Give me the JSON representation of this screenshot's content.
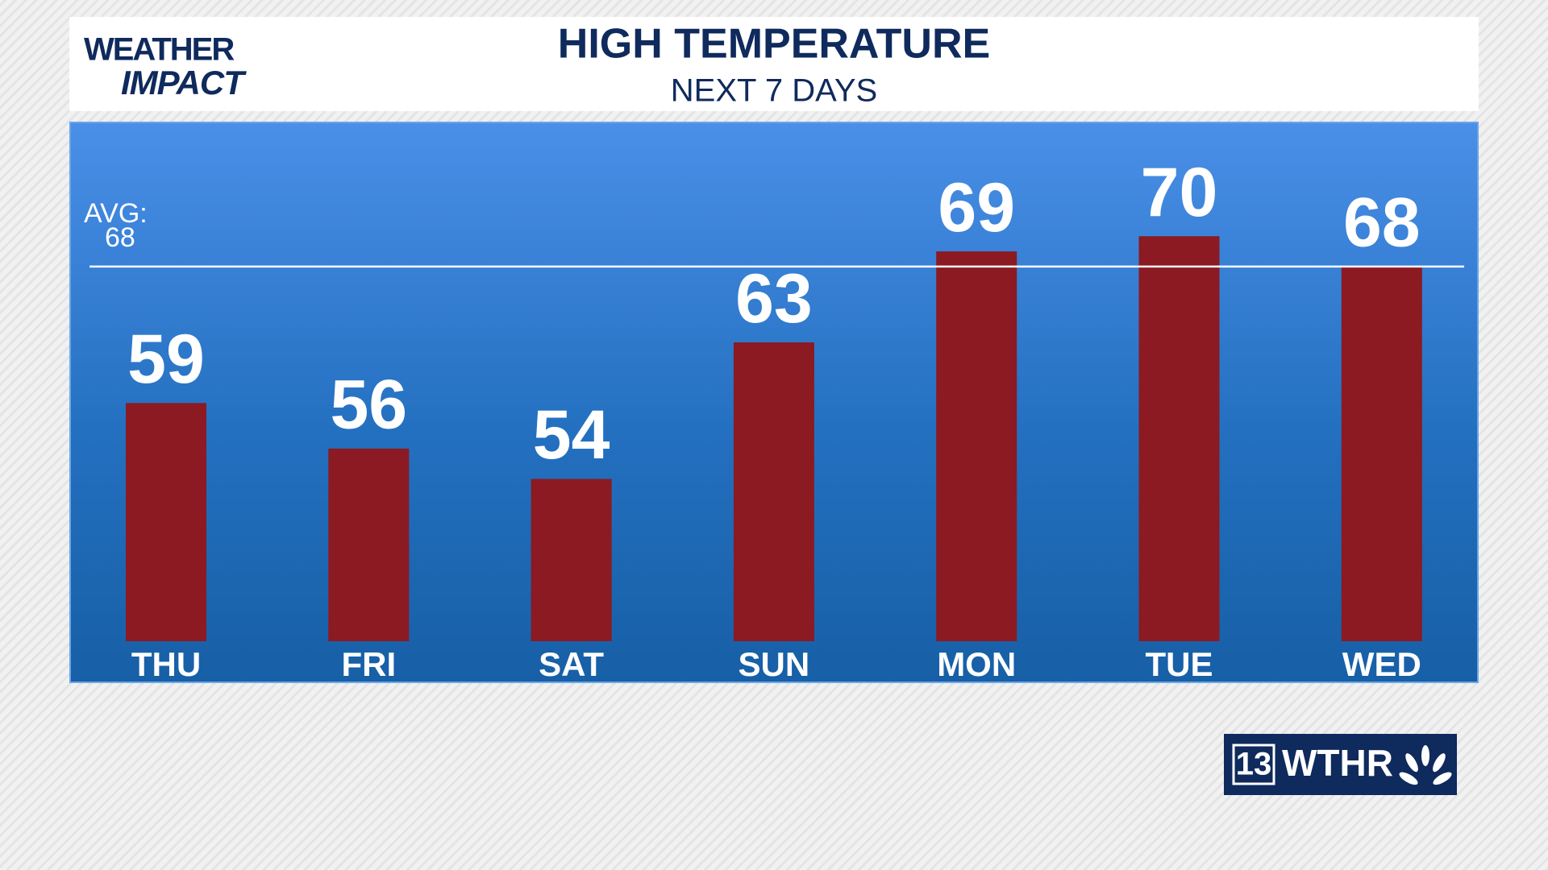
{
  "logo": {
    "line1": "WEATHER",
    "line2": "IMPACT"
  },
  "station": {
    "number": "13",
    "name": "WTHR"
  },
  "chart_data": {
    "type": "bar",
    "title": "HIGH TEMPERATURE",
    "subtitle": "NEXT 7 DAYS",
    "categories": [
      "THU",
      "FRI",
      "SAT",
      "SUN",
      "MON",
      "TUE",
      "WED"
    ],
    "values": [
      59,
      56,
      54,
      63,
      69,
      70,
      68
    ],
    "color": "#8b1a22",
    "ylim": [
      43.3,
      77.5
    ],
    "avg": {
      "label": "AVG:",
      "value": 68
    }
  }
}
